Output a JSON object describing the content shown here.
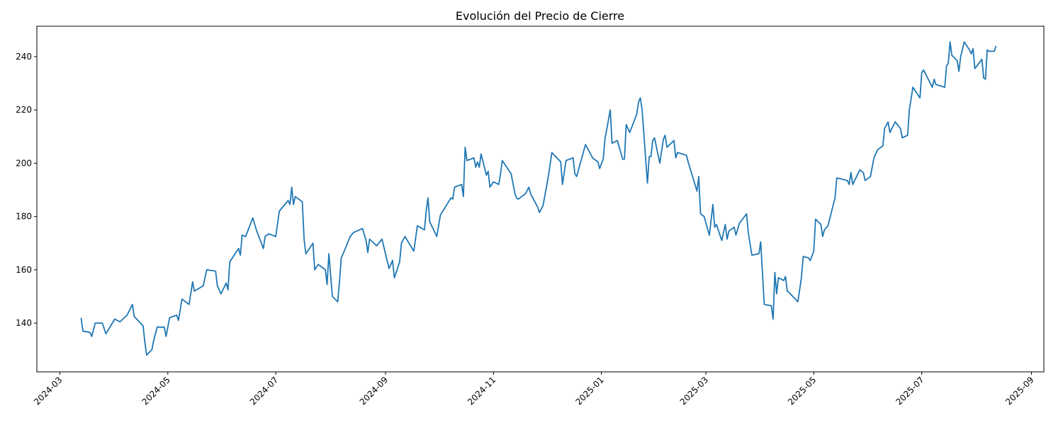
{
  "chart_data": {
    "type": "line",
    "title": "Evolución del Precio de Cierre",
    "color": "#1f77b4",
    "grid": false,
    "xlim": [
      "2024-02-17",
      "2025-09-08"
    ],
    "xticks": [
      "2024-03",
      "2024-05",
      "2024-07",
      "2024-09",
      "2024-11",
      "2025-01",
      "2025-03",
      "2025-05",
      "2025-07",
      "2025-09"
    ],
    "ylim": [
      121.7,
      251.4
    ],
    "yticks": [
      140,
      160,
      180,
      200,
      220,
      240
    ],
    "x": [
      "2024-03-13",
      "2024-03-14",
      "2024-03-18",
      "2024-03-19",
      "2024-03-21",
      "2024-03-25",
      "2024-03-27",
      "2024-04-01",
      "2024-04-04",
      "2024-04-08",
      "2024-04-11",
      "2024-04-12",
      "2024-04-17",
      "2024-04-18",
      "2024-04-19",
      "2024-04-22",
      "2024-04-23",
      "2024-04-25",
      "2024-04-29",
      "2024-04-30",
      "2024-05-02",
      "2024-05-06",
      "2024-05-07",
      "2024-05-09",
      "2024-05-13",
      "2024-05-15",
      "2024-05-16",
      "2024-05-21",
      "2024-05-23",
      "2024-05-28",
      "2024-05-29",
      "2024-05-31",
      "2024-06-03",
      "2024-06-04",
      "2024-06-05",
      "2024-06-10",
      "2024-06-11",
      "2024-06-12",
      "2024-06-14",
      "2024-06-18",
      "2024-06-20",
      "2024-06-24",
      "2024-06-25",
      "2024-06-27",
      "2024-07-01",
      "2024-07-03",
      "2024-07-08",
      "2024-07-09",
      "2024-07-10",
      "2024-07-11",
      "2024-07-12",
      "2024-07-16",
      "2024-07-17",
      "2024-07-18",
      "2024-07-22",
      "2024-07-23",
      "2024-07-25",
      "2024-07-29",
      "2024-07-30",
      "2024-07-31",
      "2024-08-02",
      "2024-08-05",
      "2024-08-06",
      "2024-08-07",
      "2024-08-09",
      "2024-08-12",
      "2024-08-14",
      "2024-08-19",
      "2024-08-21",
      "2024-08-22",
      "2024-08-23",
      "2024-08-27",
      "2024-08-30",
      "2024-09-03",
      "2024-09-05",
      "2024-09-06",
      "2024-09-09",
      "2024-09-10",
      "2024-09-12",
      "2024-09-17",
      "2024-09-19",
      "2024-09-23",
      "2024-09-24",
      "2024-09-25",
      "2024-09-26",
      "2024-09-30",
      "2024-10-02",
      "2024-10-08",
      "2024-10-09",
      "2024-10-10",
      "2024-10-14",
      "2024-10-15",
      "2024-10-16",
      "2024-10-17",
      "2024-10-21",
      "2024-10-22",
      "2024-10-23",
      "2024-10-24",
      "2024-10-25",
      "2024-10-28",
      "2024-10-29",
      "2024-10-30",
      "2024-11-01",
      "2024-11-04",
      "2024-11-05",
      "2024-11-06",
      "2024-11-11",
      "2024-11-13",
      "2024-11-14",
      "2024-11-15",
      "2024-11-19",
      "2024-11-21",
      "2024-11-22",
      "2024-11-26",
      "2024-11-27",
      "2024-11-29",
      "2024-12-02",
      "2024-12-04",
      "2024-12-09",
      "2024-12-10",
      "2024-12-12",
      "2024-12-16",
      "2024-12-17",
      "2024-12-18",
      "2024-12-23",
      "2024-12-27",
      "2024-12-30",
      "2024-12-31",
      "2025-01-02",
      "2025-01-03",
      "2025-01-06",
      "2025-01-07",
      "2025-01-10",
      "2025-01-13",
      "2025-01-14",
      "2025-01-15",
      "2025-01-17",
      "2025-01-21",
      "2025-01-22",
      "2025-01-23",
      "2025-01-24",
      "2025-01-27",
      "2025-01-28",
      "2025-01-29",
      "2025-01-30",
      "2025-01-31",
      "2025-02-03",
      "2025-02-05",
      "2025-02-06",
      "2025-02-07",
      "2025-02-11",
      "2025-02-12",
      "2025-02-13",
      "2025-02-18",
      "2025-02-19",
      "2025-02-24",
      "2025-02-25",
      "2025-02-26",
      "2025-02-28",
      "2025-03-03",
      "2025-03-05",
      "2025-03-06",
      "2025-03-07",
      "2025-03-10",
      "2025-03-12",
      "2025-03-13",
      "2025-03-14",
      "2025-03-17",
      "2025-03-18",
      "2025-03-20",
      "2025-03-24",
      "2025-03-25",
      "2025-03-27",
      "2025-03-31",
      "2025-04-01",
      "2025-04-03",
      "2025-04-07",
      "2025-04-08",
      "2025-04-09",
      "2025-04-10",
      "2025-04-11",
      "2025-04-14",
      "2025-04-15",
      "2025-04-16",
      "2025-04-17",
      "2025-04-22",
      "2025-04-24",
      "2025-04-25",
      "2025-04-28",
      "2025-04-29",
      "2025-05-01",
      "2025-05-02",
      "2025-05-05",
      "2025-05-06",
      "2025-05-07",
      "2025-05-09",
      "2025-05-13",
      "2025-05-14",
      "2025-05-20",
      "2025-05-21",
      "2025-05-22",
      "2025-05-23",
      "2025-05-27",
      "2025-05-29",
      "2025-05-30",
      "2025-06-02",
      "2025-06-04",
      "2025-06-06",
      "2025-06-09",
      "2025-06-10",
      "2025-06-12",
      "2025-06-13",
      "2025-06-16",
      "2025-06-19",
      "2025-06-20",
      "2025-06-23",
      "2025-06-24",
      "2025-06-26",
      "2025-06-30",
      "2025-07-01",
      "2025-07-02",
      "2025-07-07",
      "2025-07-08",
      "2025-07-09",
      "2025-07-14",
      "2025-07-15",
      "2025-07-16",
      "2025-07-17",
      "2025-07-18",
      "2025-07-21",
      "2025-07-22",
      "2025-07-23",
      "2025-07-25",
      "2025-07-28",
      "2025-07-29",
      "2025-07-30",
      "2025-07-31",
      "2025-08-04",
      "2025-08-05",
      "2025-08-06",
      "2025-08-07",
      "2025-08-08",
      "2025-08-11",
      "2025-08-12"
    ],
    "values": [
      142,
      137,
      136.5,
      135,
      140,
      140,
      136,
      141.5,
      140.5,
      143,
      147,
      142.5,
      139,
      133,
      128,
      130,
      133.5,
      138.5,
      138.5,
      135,
      142,
      143,
      141,
      149,
      147,
      155.5,
      152,
      154,
      160,
      159.5,
      154,
      151,
      155,
      152.5,
      163,
      168,
      165.5,
      173,
      172.5,
      179.5,
      175,
      168,
      172.5,
      173.5,
      172.5,
      182,
      186,
      184.5,
      191,
      184.5,
      187.5,
      185.5,
      171.5,
      166,
      170,
      160,
      162,
      160,
      154.5,
      166,
      150,
      148,
      155.5,
      164.5,
      167.5,
      172.5,
      174,
      175.5,
      171,
      166.5,
      171.5,
      169,
      171.5,
      160.5,
      163.5,
      157,
      163,
      170,
      172.5,
      167,
      176.5,
      175,
      182,
      187,
      178,
      172.5,
      180.5,
      187,
      186.5,
      191,
      192,
      187.5,
      206,
      201,
      202,
      198.5,
      200.5,
      198.5,
      203.5,
      195.5,
      197,
      191,
      193,
      192,
      196,
      201,
      196,
      189,
      187,
      186.5,
      188.5,
      191,
      188.5,
      183.5,
      181.5,
      184,
      195,
      204,
      200.5,
      192,
      201,
      202,
      196,
      195,
      207,
      202,
      200.5,
      198,
      201.5,
      209,
      220,
      207.5,
      208.5,
      201.5,
      201.5,
      214.5,
      211.5,
      218.5,
      223,
      224.5,
      220,
      192.5,
      202.5,
      202.5,
      208.5,
      209.5,
      200,
      209,
      210.5,
      206,
      208.5,
      202,
      204,
      203,
      200.5,
      189.5,
      195,
      181,
      180,
      173,
      184.5,
      176,
      177,
      171,
      177,
      171.5,
      174.5,
      176,
      173,
      177.5,
      181,
      174,
      165.5,
      166,
      170.5,
      147,
      146.5,
      141.5,
      159,
      151,
      157,
      156,
      157.5,
      152,
      151.5,
      148,
      157,
      165,
      164.5,
      163.5,
      167,
      179,
      177,
      172.5,
      175,
      176.5,
      187,
      194.5,
      193.5,
      192,
      196.5,
      192,
      197.5,
      196.5,
      193.5,
      195,
      202,
      205,
      206.5,
      213,
      215.5,
      211.5,
      215.5,
      213,
      209.5,
      210.5,
      220,
      228.5,
      224.5,
      234,
      235,
      228.5,
      231.5,
      229.5,
      228.5,
      236.5,
      237.5,
      245.5,
      240.5,
      238.5,
      234.5,
      240,
      245.5,
      242.5,
      241,
      243,
      235.5,
      239,
      232,
      231.5,
      242.5,
      242,
      242,
      244
    ]
  }
}
